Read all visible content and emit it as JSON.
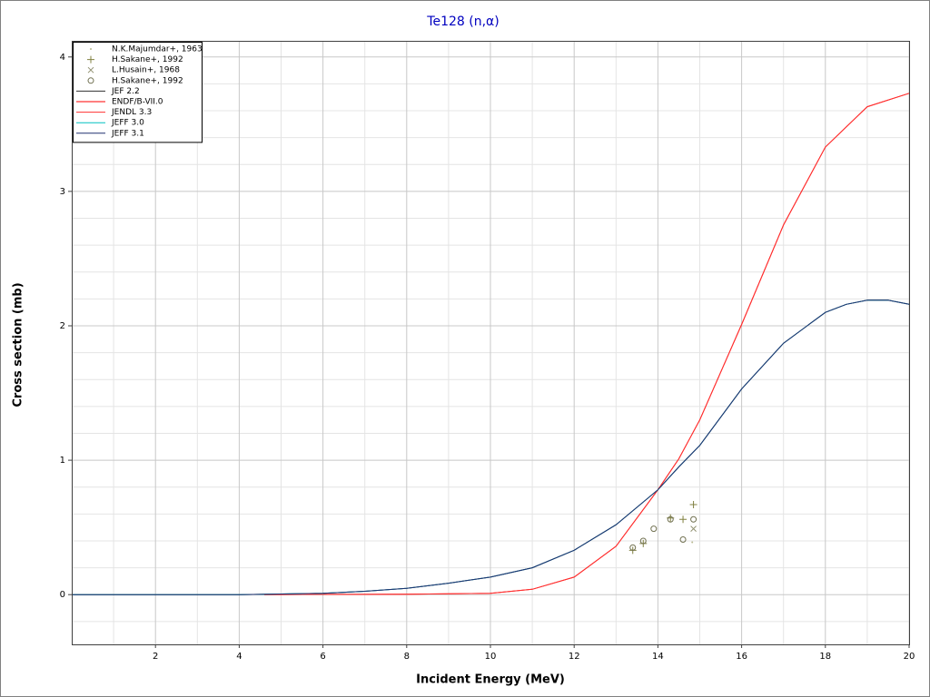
{
  "chart_data": {
    "type": "line",
    "title": "Te128 (n,α)",
    "xlabel": "Incident Energy (MeV)",
    "ylabel": "Cross section (mb)",
    "xlim": [
      0,
      20
    ],
    "ylim": [
      -0.37,
      4.12
    ],
    "xticks": [
      2,
      4,
      6,
      8,
      10,
      12,
      14,
      16,
      18,
      20
    ],
    "yticks": [
      0,
      1,
      2,
      3,
      4
    ],
    "xminorticks": [
      1,
      3,
      5,
      7,
      9,
      11,
      13,
      15,
      17,
      19
    ],
    "yminorticks": [
      -0.2,
      0.2,
      0.4,
      0.6,
      0.8,
      1.2,
      1.4,
      1.6,
      1.8,
      2.2,
      2.4,
      2.6,
      2.8,
      3.2,
      3.4,
      3.6,
      3.8
    ],
    "grid": true,
    "legend": "upper left",
    "series": [
      {
        "name": "N.K.Majumdar+, 1963",
        "mode": "markers",
        "marker": "dot",
        "color": "#b8b890",
        "x": [
          14.82
        ],
        "values": [
          0.39
        ]
      },
      {
        "name": "H.Sakane+, 1992",
        "mode": "markers",
        "marker": "plus",
        "color": "#808040",
        "x": [
          13.4,
          13.65,
          14.3,
          14.6,
          14.85
        ],
        "values": [
          0.33,
          0.38,
          0.57,
          0.56,
          0.67
        ]
      },
      {
        "name": "L.Husain+, 1968",
        "mode": "markers",
        "marker": "cross",
        "color": "#909070",
        "x": [
          14.85
        ],
        "values": [
          0.49
        ]
      },
      {
        "name": "H.Sakane+, 1992",
        "mode": "markers",
        "marker": "circle",
        "color": "#707050",
        "x": [
          13.4,
          13.65,
          13.9,
          14.3,
          14.6,
          14.85
        ],
        "values": [
          0.35,
          0.4,
          0.49,
          0.56,
          0.41,
          0.56
        ]
      },
      {
        "name": "JEF 2.2",
        "mode": "line",
        "color": "#303030",
        "x": [
          0,
          2,
          4,
          6,
          7,
          8,
          9,
          10,
          11,
          12,
          13,
          14,
          14.5,
          15,
          16,
          17,
          18,
          18.5,
          19,
          19.5,
          20
        ],
        "values": [
          0,
          0,
          0,
          0.01,
          0.025,
          0.047,
          0.085,
          0.13,
          0.2,
          0.33,
          0.52,
          0.78,
          0.95,
          1.11,
          1.53,
          1.87,
          2.1,
          2.16,
          2.19,
          2.19,
          2.16
        ]
      },
      {
        "name": "ENDF/B-VII.0",
        "mode": "line",
        "color": "#ff0000",
        "x": [
          4.6,
          6,
          8,
          10,
          11,
          12,
          13,
          14,
          14.5,
          15,
          16,
          17,
          18,
          19,
          20
        ],
        "values": [
          0,
          0.002,
          0.003,
          0.01,
          0.04,
          0.13,
          0.36,
          0.78,
          1.01,
          1.3,
          2.01,
          2.75,
          3.33,
          3.63,
          3.73
        ]
      },
      {
        "name": "JENDL 3.3",
        "mode": "line",
        "color": "#ff3030",
        "x": [
          4.6,
          6,
          8,
          10,
          11,
          12,
          13,
          14,
          14.5,
          15,
          16,
          17,
          18,
          19,
          20
        ],
        "values": [
          0,
          0.002,
          0.003,
          0.01,
          0.04,
          0.13,
          0.36,
          0.78,
          1.01,
          1.3,
          2.01,
          2.75,
          3.33,
          3.63,
          3.73
        ]
      },
      {
        "name": "JEFF 3.0",
        "mode": "line",
        "color": "#00c0c0",
        "x": [
          0,
          2,
          4,
          6,
          7,
          8,
          9,
          10,
          11,
          12,
          13,
          14,
          14.5,
          15,
          16,
          17,
          18,
          18.5,
          19,
          19.5,
          20
        ],
        "values": [
          0,
          0,
          0,
          0.01,
          0.025,
          0.047,
          0.085,
          0.13,
          0.2,
          0.33,
          0.52,
          0.78,
          0.95,
          1.11,
          1.53,
          1.87,
          2.1,
          2.16,
          2.19,
          2.19,
          2.16
        ]
      },
      {
        "name": "JEFF 3.1",
        "mode": "line",
        "color": "#203070",
        "x": [
          0,
          2,
          4,
          6,
          7,
          8,
          9,
          10,
          11,
          12,
          13,
          14,
          14.5,
          15,
          16,
          17,
          18,
          18.5,
          19,
          19.5,
          20
        ],
        "values": [
          0,
          0,
          0,
          0.01,
          0.025,
          0.047,
          0.085,
          0.13,
          0.2,
          0.33,
          0.52,
          0.78,
          0.95,
          1.11,
          1.53,
          1.87,
          2.1,
          2.16,
          2.19,
          2.19,
          2.16
        ]
      }
    ]
  }
}
